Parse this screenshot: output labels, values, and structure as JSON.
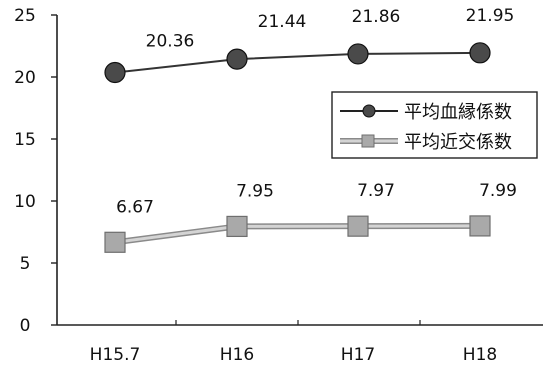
{
  "chart_data": {
    "type": "line",
    "categories": [
      "H15.7",
      "H16",
      "H17",
      "H18"
    ],
    "series": [
      {
        "name": "平均血縁係数",
        "values": [
          20.36,
          21.44,
          21.86,
          21.95
        ],
        "color": "#333333",
        "marker": "circle",
        "data_labels": [
          "20.36",
          "21.44",
          "21.86",
          "21.95"
        ]
      },
      {
        "name": "平均近交係数",
        "values": [
          6.67,
          7.95,
          7.97,
          7.99
        ],
        "color": "#9a9a9a",
        "marker": "square",
        "data_labels": [
          "6.67",
          "7.95",
          "7.97",
          "7.99"
        ]
      }
    ],
    "ylim": [
      0,
      25
    ],
    "yticks": [
      "0",
      "5",
      "10",
      "15",
      "20",
      "25"
    ],
    "title": "",
    "xlabel": "",
    "ylabel": "",
    "grid": false,
    "legend_position": "right"
  }
}
